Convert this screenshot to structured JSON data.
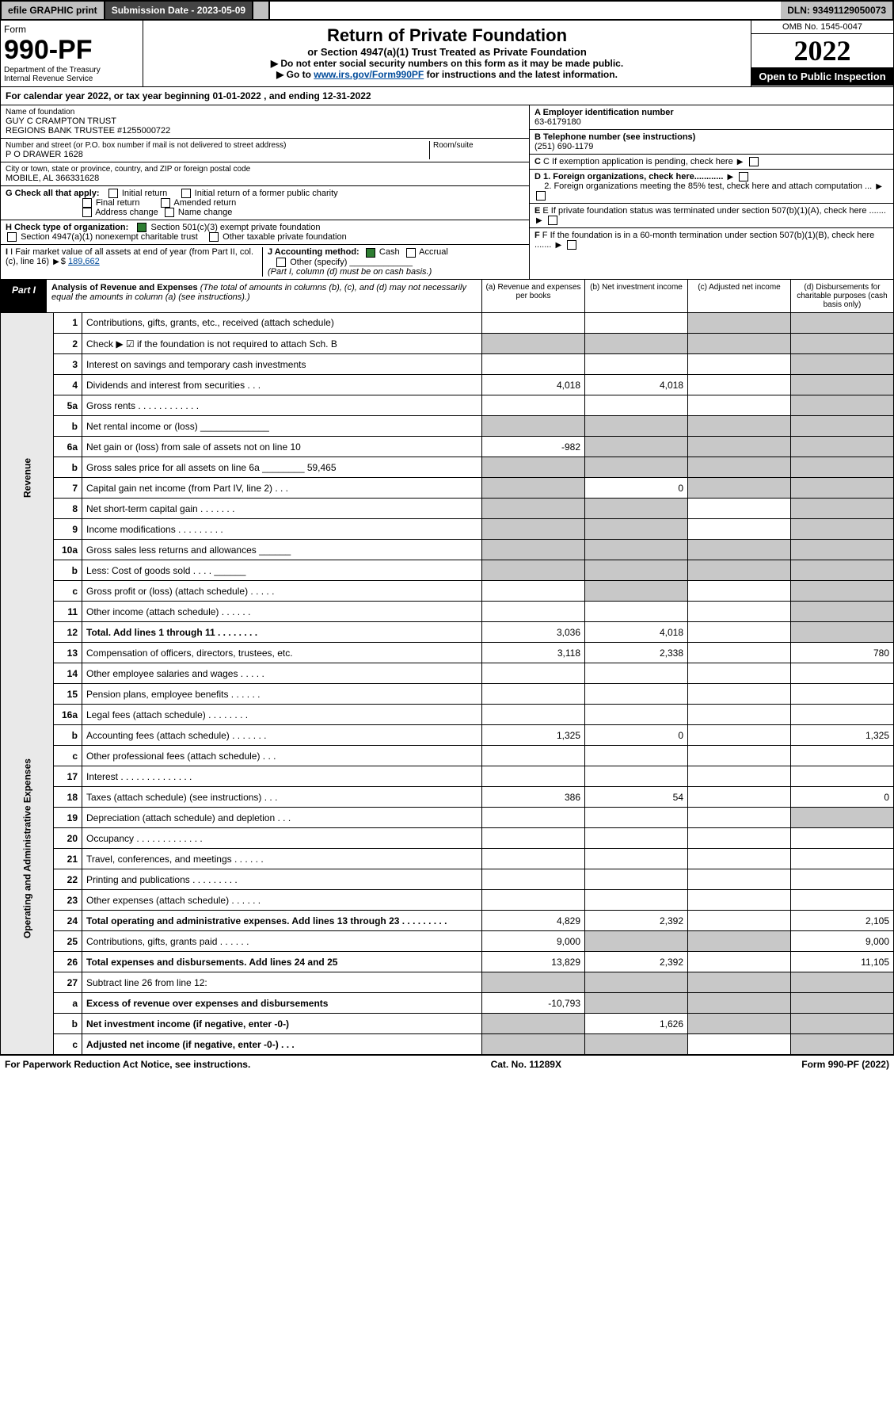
{
  "topbar": {
    "efile": "efile GRAPHIC print",
    "sub_lbl": "Submission Date - 2023-05-09",
    "dln": "DLN: 93491129050073"
  },
  "header": {
    "form_word": "Form",
    "form_no": "990-PF",
    "dept": "Department of the Treasury",
    "irs": "Internal Revenue Service",
    "title": "Return of Private Foundation",
    "subtitle": "or Section 4947(a)(1) Trust Treated as Private Foundation",
    "note1": "▶ Do not enter social security numbers on this form as it may be made public.",
    "note2_pre": "▶ Go to ",
    "note2_link": "www.irs.gov/Form990PF",
    "note2_post": " for instructions and the latest information.",
    "omb": "OMB No. 1545-0047",
    "year": "2022",
    "open": "Open to Public Inspection"
  },
  "cal_year": "For calendar year 2022, or tax year beginning 01-01-2022                         , and ending 12-31-2022",
  "info_left": {
    "name_lbl": "Name of foundation",
    "name1": "GUY C CRAMPTON TRUST",
    "name2": "REGIONS BANK TRUSTEE #1255000722",
    "addr_lbl": "Number and street (or P.O. box number if mail is not delivered to street address)",
    "room_lbl": "Room/suite",
    "addr": "P O DRAWER 1628",
    "city_lbl": "City or town, state or province, country, and ZIP or foreign postal code",
    "city": "MOBILE, AL  366331628",
    "g": "G Check all that apply:",
    "g_initial": "Initial return",
    "g_final": "Final return",
    "g_addr": "Address change",
    "g_init_former": "Initial return of a former public charity",
    "g_amended": "Amended return",
    "g_name": "Name change",
    "h": "H Check type of organization:",
    "h_501c3": "Section 501(c)(3) exempt private foundation",
    "h_4947": "Section 4947(a)(1) nonexempt charitable trust",
    "h_other": "Other taxable private foundation",
    "i": "I Fair market value of all assets at end of year (from Part II, col. (c), line 16)",
    "i_val": "189,662",
    "j": "J Accounting method:",
    "j_cash": "Cash",
    "j_accrual": "Accrual",
    "j_other": "Other (specify)",
    "j_note": "(Part I, column (d) must be on cash basis.)"
  },
  "info_right": {
    "a_lbl": "A Employer identification number",
    "a_val": "63-6179180",
    "b_lbl": "B Telephone number (see instructions)",
    "b_val": "(251) 690-1179",
    "c": "C If exemption application is pending, check here",
    "d1": "D 1. Foreign organizations, check here............",
    "d2": "2. Foreign organizations meeting the 85% test, check here and attach computation ...",
    "e": "E  If private foundation status was terminated under section 507(b)(1)(A), check here .......",
    "f": "F  If the foundation is in a 60-month termination under section 507(b)(1)(B), check here ......."
  },
  "part1": {
    "label": "Part I",
    "title": "Analysis of Revenue and Expenses",
    "note": " (The total of amounts in columns (b), (c), and (d) may not necessarily equal the amounts in column (a) (see instructions).)",
    "col_a": "(a)  Revenue and expenses per books",
    "col_b": "(b)  Net investment income",
    "col_c": "(c)  Adjusted net income",
    "col_d": "(d)  Disbursements for charitable purposes (cash basis only)"
  },
  "side": {
    "rev": "Revenue",
    "exp": "Operating and Administrative Expenses"
  },
  "rows": [
    {
      "ln": "1",
      "desc": "Contributions, gifts, grants, etc., received (attach schedule)",
      "a": "",
      "b": "",
      "c": "blk",
      "d": "blk"
    },
    {
      "ln": "2",
      "desc": "Check ▶ ☑ if the foundation is not required to attach Sch. B",
      "a": "blk",
      "b": "blk",
      "c": "blk",
      "d": "blk",
      "bold_not": true
    },
    {
      "ln": "3",
      "desc": "Interest on savings and temporary cash investments",
      "a": "",
      "b": "",
      "c": "",
      "d": "blk"
    },
    {
      "ln": "4",
      "desc": "Dividends and interest from securities    .   .   .",
      "a": "4,018",
      "b": "4,018",
      "c": "",
      "d": "blk"
    },
    {
      "ln": "5a",
      "desc": "Gross rents    .   .   .   .   .   .   .   .   .   .   .   .",
      "a": "",
      "b": "",
      "c": "",
      "d": "blk"
    },
    {
      "ln": "b",
      "desc": "Net rental income or (loss)  _____________",
      "a": "blk",
      "b": "blk",
      "c": "blk",
      "d": "blk"
    },
    {
      "ln": "6a",
      "desc": "Net gain or (loss) from sale of assets not on line 10",
      "a": "-982",
      "b": "blk",
      "c": "blk",
      "d": "blk"
    },
    {
      "ln": "b",
      "desc": "Gross sales price for all assets on line 6a ________ 59,465",
      "a": "blk",
      "b": "blk",
      "c": "blk",
      "d": "blk"
    },
    {
      "ln": "7",
      "desc": "Capital gain net income (from Part IV, line 2)   .   .   .",
      "a": "blk",
      "b": "0",
      "c": "blk",
      "d": "blk"
    },
    {
      "ln": "8",
      "desc": "Net short-term capital gain   .   .   .   .   .   .   .",
      "a": "blk",
      "b": "blk",
      "c": "",
      "d": "blk"
    },
    {
      "ln": "9",
      "desc": "Income modifications  .   .   .   .   .   .   .   .   .",
      "a": "blk",
      "b": "blk",
      "c": "",
      "d": "blk"
    },
    {
      "ln": "10a",
      "desc": "Gross sales less returns and allowances  ______",
      "a": "blk",
      "b": "blk",
      "c": "blk",
      "d": "blk"
    },
    {
      "ln": "b",
      "desc": "Less: Cost of goods sold     .   .   .   .   ______",
      "a": "blk",
      "b": "blk",
      "c": "blk",
      "d": "blk"
    },
    {
      "ln": "c",
      "desc": "Gross profit or (loss) (attach schedule)    .   .   .   .   .",
      "a": "",
      "b": "blk",
      "c": "",
      "d": "blk"
    },
    {
      "ln": "11",
      "desc": "Other income (attach schedule)    .   .   .   .   .   .",
      "a": "",
      "b": "",
      "c": "",
      "d": "blk"
    },
    {
      "ln": "12",
      "desc": "Total. Add lines 1 through 11   .   .   .   .   .   .   .   .",
      "a": "3,036",
      "b": "4,018",
      "c": "",
      "d": "blk",
      "bold": true
    },
    {
      "ln": "13",
      "desc": "Compensation of officers, directors, trustees, etc.",
      "a": "3,118",
      "b": "2,338",
      "c": "",
      "d": "780"
    },
    {
      "ln": "14",
      "desc": "Other employee salaries and wages   .   .   .   .   .",
      "a": "",
      "b": "",
      "c": "",
      "d": ""
    },
    {
      "ln": "15",
      "desc": "Pension plans, employee benefits  .   .   .   .   .   .",
      "a": "",
      "b": "",
      "c": "",
      "d": ""
    },
    {
      "ln": "16a",
      "desc": "Legal fees (attach schedule)  .   .   .   .   .   .   .   .",
      "a": "",
      "b": "",
      "c": "",
      "d": ""
    },
    {
      "ln": "b",
      "desc": "Accounting fees (attach schedule)  .   .   .   .   .   .   .",
      "a": "1,325",
      "b": "0",
      "c": "",
      "d": "1,325"
    },
    {
      "ln": "c",
      "desc": "Other professional fees (attach schedule)    .   .   .",
      "a": "",
      "b": "",
      "c": "",
      "d": ""
    },
    {
      "ln": "17",
      "desc": "Interest  .   .   .   .   .   .   .   .   .   .   .   .   .   .",
      "a": "",
      "b": "",
      "c": "",
      "d": ""
    },
    {
      "ln": "18",
      "desc": "Taxes (attach schedule) (see instructions)     .   .   .",
      "a": "386",
      "b": "54",
      "c": "",
      "d": "0"
    },
    {
      "ln": "19",
      "desc": "Depreciation (attach schedule) and depletion    .   .   .",
      "a": "",
      "b": "",
      "c": "",
      "d": "blk"
    },
    {
      "ln": "20",
      "desc": "Occupancy  .   .   .   .   .   .   .   .   .   .   .   .   .",
      "a": "",
      "b": "",
      "c": "",
      "d": ""
    },
    {
      "ln": "21",
      "desc": "Travel, conferences, and meetings  .   .   .   .   .   .",
      "a": "",
      "b": "",
      "c": "",
      "d": ""
    },
    {
      "ln": "22",
      "desc": "Printing and publications  .   .   .   .   .   .   .   .   .",
      "a": "",
      "b": "",
      "c": "",
      "d": ""
    },
    {
      "ln": "23",
      "desc": "Other expenses (attach schedule)  .   .   .   .   .   .",
      "a": "",
      "b": "",
      "c": "",
      "d": ""
    },
    {
      "ln": "24",
      "desc": "Total operating and administrative expenses. Add lines 13 through 23   .   .   .   .   .   .   .   .   .",
      "a": "4,829",
      "b": "2,392",
      "c": "",
      "d": "2,105",
      "bold": true
    },
    {
      "ln": "25",
      "desc": "Contributions, gifts, grants paid     .   .   .   .   .   .",
      "a": "9,000",
      "b": "blk",
      "c": "blk",
      "d": "9,000"
    },
    {
      "ln": "26",
      "desc": "Total expenses and disbursements. Add lines 24 and 25",
      "a": "13,829",
      "b": "2,392",
      "c": "",
      "d": "11,105",
      "bold": true
    },
    {
      "ln": "27",
      "desc": "Subtract line 26 from line 12:",
      "a": "blk",
      "b": "blk",
      "c": "blk",
      "d": "blk"
    },
    {
      "ln": "a",
      "desc": "Excess of revenue over expenses and disbursements",
      "a": "-10,793",
      "b": "blk",
      "c": "blk",
      "d": "blk",
      "bold": true
    },
    {
      "ln": "b",
      "desc": "Net investment income (if negative, enter -0-)",
      "a": "blk",
      "b": "1,626",
      "c": "blk",
      "d": "blk",
      "bold": true
    },
    {
      "ln": "c",
      "desc": "Adjusted net income (if negative, enter -0-)   .   .   .",
      "a": "blk",
      "b": "blk",
      "c": "",
      "d": "blk",
      "bold": true
    }
  ],
  "footer": {
    "left": "For Paperwork Reduction Act Notice, see instructions.",
    "mid": "Cat. No. 11289X",
    "right": "Form 990-PF (2022)"
  }
}
